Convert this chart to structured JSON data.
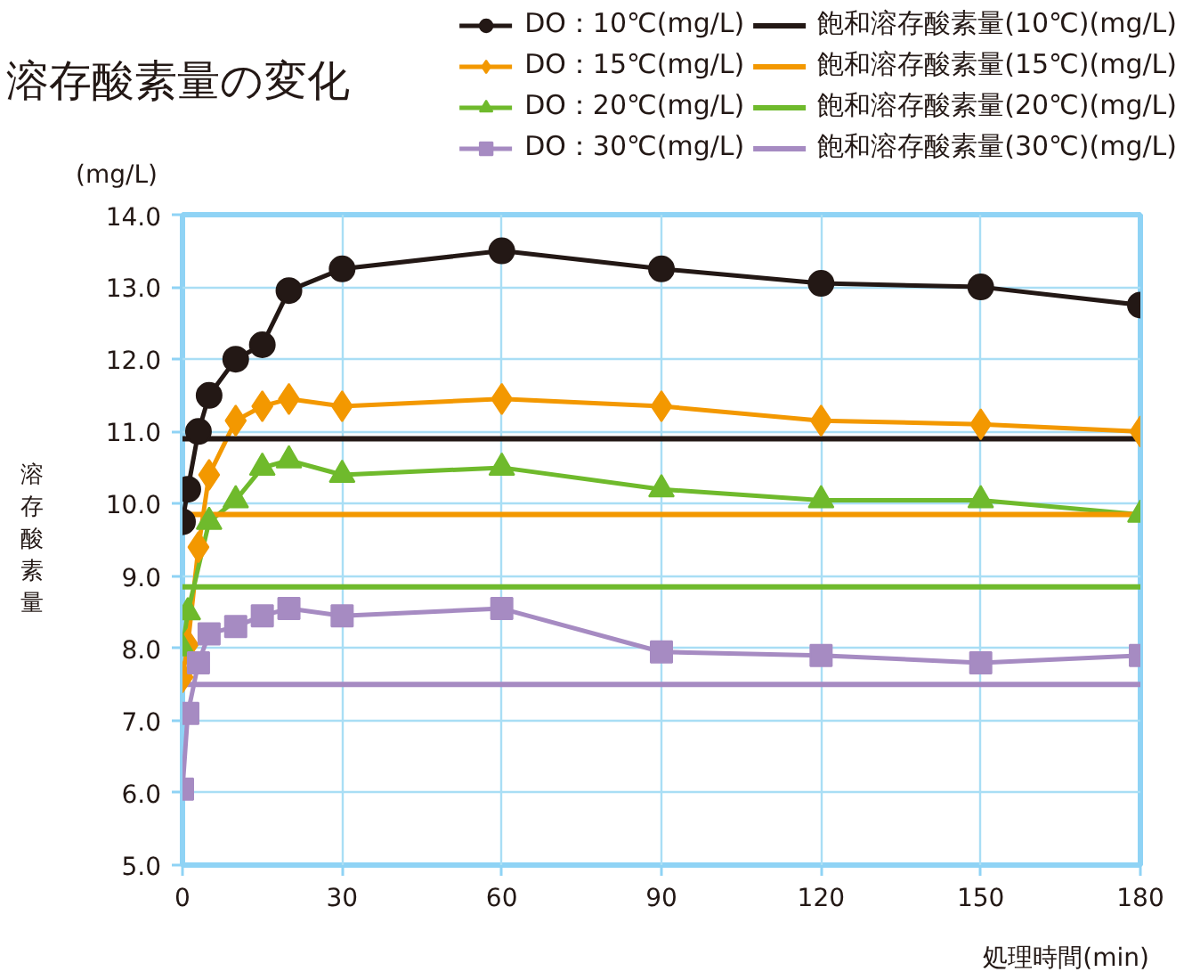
{
  "chart_data": {
    "type": "line",
    "title": "溶存酸素量の変化",
    "xlabel": "処理時間(min)",
    "ylabel": "溶存酸素量",
    "annotations": [
      "(mg/L)"
    ],
    "xlim": [
      0,
      180
    ],
    "ylim": [
      5,
      14
    ],
    "xticks": [
      0,
      30,
      60,
      90,
      120,
      150,
      180
    ],
    "yticks": [
      {
        "value": 5,
        "label": "5.0"
      },
      {
        "value": 6,
        "label": "6.0"
      },
      {
        "value": 7,
        "label": "7.0"
      },
      {
        "value": 8,
        "label": "8.0"
      },
      {
        "value": 9,
        "label": "9.0"
      },
      {
        "value": 10,
        "label": "10.0"
      },
      {
        "value": 11,
        "label": "11.0"
      },
      {
        "value": 12,
        "label": "12.0"
      },
      {
        "value": 13,
        "label": "13.0"
      },
      {
        "value": 14,
        "label": "14.0"
      }
    ],
    "grid": true,
    "legend": "top right",
    "line_style": "solid",
    "series": [
      {
        "name": "DO：10℃(mg/L)",
        "color": "#231815",
        "marker": "circle",
        "x": [
          0,
          1,
          3,
          5,
          10,
          15,
          20,
          30,
          60,
          90,
          120,
          150,
          180
        ],
        "values": [
          9.75,
          10.2,
          11.0,
          11.5,
          12.0,
          12.2,
          12.95,
          13.25,
          13.5,
          13.25,
          13.05,
          13.0,
          12.75
        ]
      },
      {
        "name": "DO：15℃(mg/L)",
        "color": "#f39800",
        "marker": "diamond",
        "x": [
          0,
          1,
          3,
          5,
          10,
          15,
          20,
          30,
          60,
          90,
          120,
          150,
          180
        ],
        "values": [
          7.6,
          8.05,
          9.4,
          10.4,
          11.15,
          11.35,
          11.45,
          11.35,
          11.45,
          11.35,
          11.15,
          11.1,
          11.0
        ]
      },
      {
        "name": "DO：20℃(mg/L)",
        "color": "#6fba2c",
        "marker": "triangle",
        "x": [
          0,
          1,
          5,
          10,
          15,
          20,
          30,
          60,
          90,
          120,
          150,
          180
        ],
        "values": [
          8.0,
          8.5,
          9.75,
          10.05,
          10.5,
          10.6,
          10.4,
          10.5,
          10.2,
          10.05,
          10.05,
          9.85
        ]
      },
      {
        "name": "DO：30℃(mg/L)",
        "color": "#a68bc2",
        "marker": "square",
        "x": [
          0,
          1,
          3,
          5,
          10,
          15,
          20,
          30,
          60,
          90,
          120,
          150,
          180
        ],
        "values": [
          6.05,
          7.1,
          7.8,
          8.2,
          8.3,
          8.45,
          8.55,
          8.45,
          8.55,
          7.95,
          7.9,
          7.8,
          7.9
        ]
      },
      {
        "name": "飽和溶存酸素量(10℃)(mg/L)",
        "color": "#231815",
        "marker": "none",
        "x": [
          0,
          180
        ],
        "values": [
          10.9,
          10.9
        ]
      },
      {
        "name": "飽和溶存酸素量(15℃)(mg/L)",
        "color": "#f39800",
        "marker": "none",
        "x": [
          0,
          180
        ],
        "values": [
          9.85,
          9.85
        ]
      },
      {
        "name": "飽和溶存酸素量(20℃)(mg/L)",
        "color": "#6fba2c",
        "marker": "none",
        "x": [
          0,
          180
        ],
        "values": [
          8.85,
          8.85
        ]
      },
      {
        "name": "飽和溶存酸素量(30℃)(mg/L)",
        "color": "#a68bc2",
        "marker": "none",
        "x": [
          0,
          180
        ],
        "values": [
          7.5,
          7.5
        ]
      }
    ]
  }
}
